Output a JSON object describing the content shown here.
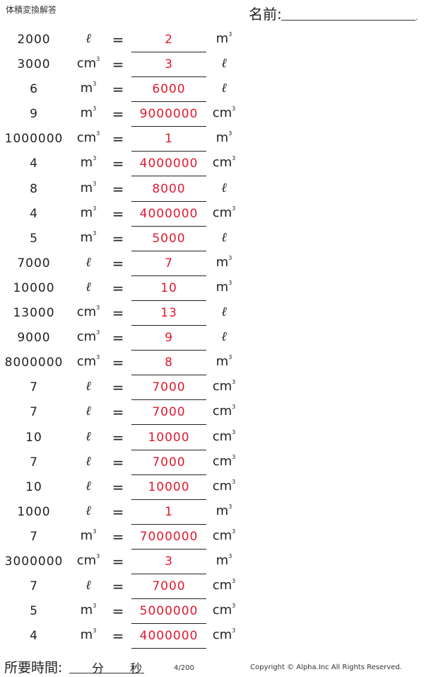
{
  "sheet_title": "体積変換解答",
  "name_label": "名前:",
  "name_dot": ".",
  "equals": "=",
  "units": {
    "l": "ℓ",
    "cm3_base": "cm",
    "m3_base": "m",
    "cube_sup": "3"
  },
  "rows": [
    {
      "given": "2000",
      "from": "l",
      "answer": "2",
      "to": "m3"
    },
    {
      "given": "3000",
      "from": "cm3",
      "answer": "3",
      "to": "l"
    },
    {
      "given": "6",
      "from": "m3",
      "answer": "6000",
      "to": "l"
    },
    {
      "given": "9",
      "from": "m3",
      "answer": "9000000",
      "to": "cm3"
    },
    {
      "given": "1000000",
      "from": "cm3",
      "answer": "1",
      "to": "m3"
    },
    {
      "given": "4",
      "from": "m3",
      "answer": "4000000",
      "to": "cm3"
    },
    {
      "given": "8",
      "from": "m3",
      "answer": "8000",
      "to": "l"
    },
    {
      "given": "4",
      "from": "m3",
      "answer": "4000000",
      "to": "cm3"
    },
    {
      "given": "5",
      "from": "m3",
      "answer": "5000",
      "to": "l"
    },
    {
      "given": "7000",
      "from": "l",
      "answer": "7",
      "to": "m3"
    },
    {
      "given": "10000",
      "from": "l",
      "answer": "10",
      "to": "m3"
    },
    {
      "given": "13000",
      "from": "cm3",
      "answer": "13",
      "to": "l"
    },
    {
      "given": "9000",
      "from": "cm3",
      "answer": "9",
      "to": "l"
    },
    {
      "given": "8000000",
      "from": "cm3",
      "answer": "8",
      "to": "m3"
    },
    {
      "given": "7",
      "from": "l",
      "answer": "7000",
      "to": "cm3"
    },
    {
      "given": "7",
      "from": "l",
      "answer": "7000",
      "to": "cm3"
    },
    {
      "given": "10",
      "from": "l",
      "answer": "10000",
      "to": "cm3"
    },
    {
      "given": "7",
      "from": "l",
      "answer": "7000",
      "to": "cm3"
    },
    {
      "given": "10",
      "from": "l",
      "answer": "10000",
      "to": "cm3"
    },
    {
      "given": "1000",
      "from": "l",
      "answer": "1",
      "to": "m3"
    },
    {
      "given": "7",
      "from": "m3",
      "answer": "7000000",
      "to": "cm3"
    },
    {
      "given": "3000000",
      "from": "cm3",
      "answer": "3",
      "to": "m3"
    },
    {
      "given": "7",
      "from": "l",
      "answer": "7000",
      "to": "cm3"
    },
    {
      "given": "5",
      "from": "m3",
      "answer": "5000000",
      "to": "cm3"
    },
    {
      "given": "4",
      "from": "m3",
      "answer": "4000000",
      "to": "cm3"
    }
  ],
  "footer": {
    "time_label": "所要時間:",
    "minutes": "分",
    "seconds": "秒",
    "page": "4/200",
    "copyright": "Copyright © Alpha.Inc All Rights Reserved."
  },
  "colors": {
    "answer": "#e0192f",
    "text": "#222222"
  }
}
